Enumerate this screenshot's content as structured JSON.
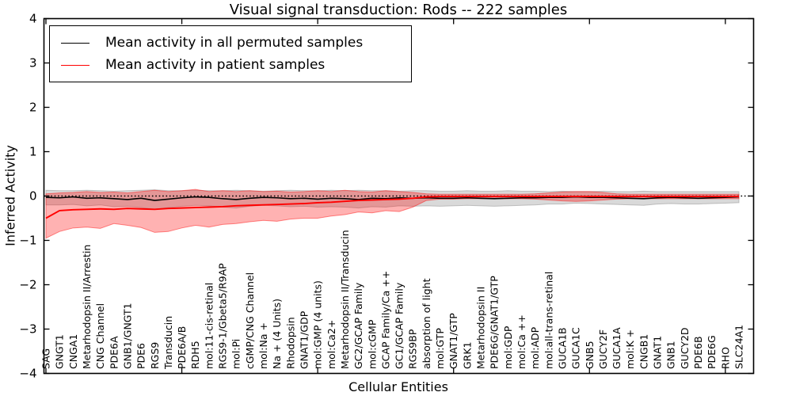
{
  "figure": {
    "title": "Visual signal transduction: Rods -- 222 samples",
    "xlabel": "Cellular Entities",
    "ylabel": "Inferred Activity",
    "background_color": "#ffffff",
    "frame_color": "#000000"
  },
  "chart_data": {
    "type": "line",
    "title": "Visual signal transduction: Rods -- 222 samples",
    "xlabel": "Cellular Entities",
    "ylabel": "Inferred Activity",
    "ylim": [
      -4,
      4
    ],
    "grid": false,
    "legend_position": "upper left",
    "zero_line": {
      "value": 0,
      "style": "dotted",
      "color": "#000000"
    },
    "y_ticks": [
      -4,
      -3,
      -2,
      -1,
      0,
      1,
      2,
      3,
      4
    ],
    "y_tick_labels": [
      "−4",
      "−3",
      "−2",
      "−1",
      "0",
      "1",
      "2",
      "3",
      "4"
    ],
    "x_tick_indices": [
      0,
      10,
      20,
      30,
      40,
      50
    ],
    "categories": [
      "SAG",
      "GNGT1",
      "CNGA1",
      "Metarhodopsin II/Arrestin",
      "CNG Channel",
      "PDE6A",
      "GNB1/GNGT1",
      "PDE6",
      "RGS9",
      "Transducin",
      "PDE6A/B",
      "RDH5",
      "mol:11-cis-retinal",
      "RGS9-1/Gbeta5/R9AP",
      "mol:Pi",
      "cGMP/CNG Channel",
      "mol:Na +",
      "Na + (4 Units)",
      "Rhodopsin",
      "GNAT1/GDP",
      "mol:GMP (4 units)",
      "mol:Ca2+",
      "Metarhodopsin II/Transducin",
      "GC2/GCAP Family",
      "mol:cGMP",
      "GCAP Family/Ca ++",
      "GC1/GCAP Family",
      "RGS9BP",
      "absorption of light",
      "mol:GTP",
      "GNAT1/GTP",
      "GRK1",
      "Metarhodopsin II",
      "PDE6G/GNAT1/GTP",
      "mol:GDP",
      "mol:Ca ++",
      "mol:ADP",
      "mol:all-trans-retinal",
      "GUCA1B",
      "GUCA1C",
      "GNB5",
      "GUCY2F",
      "GUCA1A",
      "mol:K +",
      "CNGB1",
      "GNAT1",
      "GNB1",
      "GUCY2D",
      "PDE6B",
      "PDE6G",
      "RHO",
      "SLC24A1"
    ],
    "series": [
      {
        "name": "Mean activity in all permuted samples",
        "color": "#000000",
        "values": [
          -0.03,
          -0.04,
          -0.02,
          -0.05,
          -0.04,
          -0.06,
          -0.08,
          -0.05,
          -0.1,
          -0.07,
          -0.04,
          -0.02,
          -0.03,
          -0.06,
          -0.08,
          -0.05,
          -0.03,
          -0.04,
          -0.06,
          -0.05,
          -0.07,
          -0.05,
          -0.06,
          -0.08,
          -0.05,
          -0.06,
          -0.04,
          -0.05,
          -0.04,
          -0.05,
          -0.05,
          -0.04,
          -0.05,
          -0.06,
          -0.05,
          -0.04,
          -0.04,
          -0.03,
          -0.03,
          -0.02,
          -0.03,
          -0.03,
          -0.04,
          -0.05,
          -0.06,
          -0.04,
          -0.03,
          -0.04,
          -0.05,
          -0.04,
          -0.03,
          -0.02
        ]
      },
      {
        "name": "Mean activity in patient samples",
        "color": "#ff0000",
        "values": [
          -0.5,
          -0.33,
          -0.31,
          -0.3,
          -0.29,
          -0.3,
          -0.28,
          -0.29,
          -0.3,
          -0.28,
          -0.27,
          -0.26,
          -0.25,
          -0.24,
          -0.22,
          -0.21,
          -0.2,
          -0.19,
          -0.18,
          -0.17,
          -0.15,
          -0.14,
          -0.12,
          -0.1,
          -0.09,
          -0.08,
          -0.07,
          -0.05,
          -0.02,
          -0.01,
          -0.01,
          -0.01,
          -0.01,
          -0.01,
          -0.01,
          -0.01,
          -0.01,
          -0.01,
          -0.01,
          -0.01,
          -0.01,
          -0.01,
          -0.01,
          -0.01,
          -0.01,
          -0.01,
          -0.01,
          -0.01,
          -0.01,
          -0.01,
          -0.01,
          -0.01
        ]
      }
    ],
    "bands": [
      {
        "name": "permuted-range",
        "color": "#888888",
        "opacity": 0.32,
        "upper": [
          0.13,
          0.12,
          0.12,
          0.13,
          0.12,
          0.11,
          0.12,
          0.13,
          0.14,
          0.12,
          0.12,
          0.13,
          0.12,
          0.12,
          0.13,
          0.12,
          0.11,
          0.12,
          0.13,
          0.12,
          0.12,
          0.13,
          0.12,
          0.13,
          0.12,
          0.12,
          0.11,
          0.12,
          0.12,
          0.11,
          0.11,
          0.12,
          0.11,
          0.11,
          0.12,
          0.11,
          0.11,
          0.1,
          0.11,
          0.1,
          0.1,
          0.11,
          0.1,
          0.1,
          0.11,
          0.1,
          0.1,
          0.1,
          0.1,
          0.1,
          0.1,
          0.1
        ],
        "lower": [
          -0.2,
          -0.2,
          -0.19,
          -0.22,
          -0.2,
          -0.24,
          -0.23,
          -0.26,
          -0.3,
          -0.26,
          -0.23,
          -0.21,
          -0.22,
          -0.25,
          -0.27,
          -0.23,
          -0.21,
          -0.22,
          -0.24,
          -0.23,
          -0.25,
          -0.24,
          -0.25,
          -0.27,
          -0.24,
          -0.25,
          -0.22,
          -0.23,
          -0.22,
          -0.23,
          -0.22,
          -0.21,
          -0.22,
          -0.23,
          -0.22,
          -0.21,
          -0.2,
          -0.18,
          -0.18,
          -0.16,
          -0.17,
          -0.18,
          -0.19,
          -0.2,
          -0.21,
          -0.18,
          -0.17,
          -0.18,
          -0.18,
          -0.17,
          -0.16,
          -0.15
        ]
      },
      {
        "name": "patient-range",
        "color": "#ff0000",
        "opacity": 0.3,
        "upper": [
          0.05,
          0.07,
          0.08,
          0.1,
          0.08,
          0.09,
          0.07,
          0.1,
          0.13,
          0.1,
          0.12,
          0.15,
          0.1,
          0.12,
          0.1,
          0.12,
          0.1,
          0.11,
          0.09,
          0.1,
          0.12,
          0.1,
          0.13,
          0.1,
          0.09,
          0.12,
          0.1,
          0.08,
          0.05,
          0.04,
          0.04,
          0.04,
          0.04,
          0.04,
          0.04,
          0.04,
          0.05,
          0.07,
          0.09,
          0.1,
          0.1,
          0.08,
          0.05,
          0.04,
          0.04,
          0.04,
          0.04,
          0.04,
          0.04,
          0.04,
          0.04,
          0.04
        ],
        "lower": [
          -0.95,
          -0.8,
          -0.72,
          -0.7,
          -0.73,
          -0.62,
          -0.66,
          -0.71,
          -0.82,
          -0.8,
          -0.72,
          -0.66,
          -0.7,
          -0.64,
          -0.62,
          -0.58,
          -0.55,
          -0.57,
          -0.52,
          -0.5,
          -0.5,
          -0.45,
          -0.42,
          -0.36,
          -0.38,
          -0.33,
          -0.35,
          -0.25,
          -0.1,
          -0.07,
          -0.07,
          -0.06,
          -0.06,
          -0.06,
          -0.06,
          -0.06,
          -0.07,
          -0.09,
          -0.11,
          -0.12,
          -0.11,
          -0.09,
          -0.07,
          -0.06,
          -0.06,
          -0.06,
          -0.06,
          -0.06,
          -0.06,
          -0.06,
          -0.06,
          -0.06
        ]
      }
    ]
  }
}
